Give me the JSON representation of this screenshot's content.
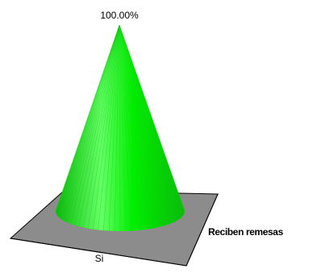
{
  "chart_data": {
    "type": "bar",
    "shape": "cone-3d",
    "categories": [
      "Si"
    ],
    "series": [
      {
        "name": "Reciben remesas",
        "values": [
          100.0
        ]
      }
    ],
    "data_labels": [
      "100.00%"
    ],
    "ylim": [
      0,
      100
    ],
    "grid": false,
    "legend": "none"
  },
  "colors": {
    "cone": "#00ee00",
    "cone_light": "#66ff66",
    "cone_dark": "#0ab80a",
    "floor": "#8c8c8c",
    "axis": "#000000"
  }
}
